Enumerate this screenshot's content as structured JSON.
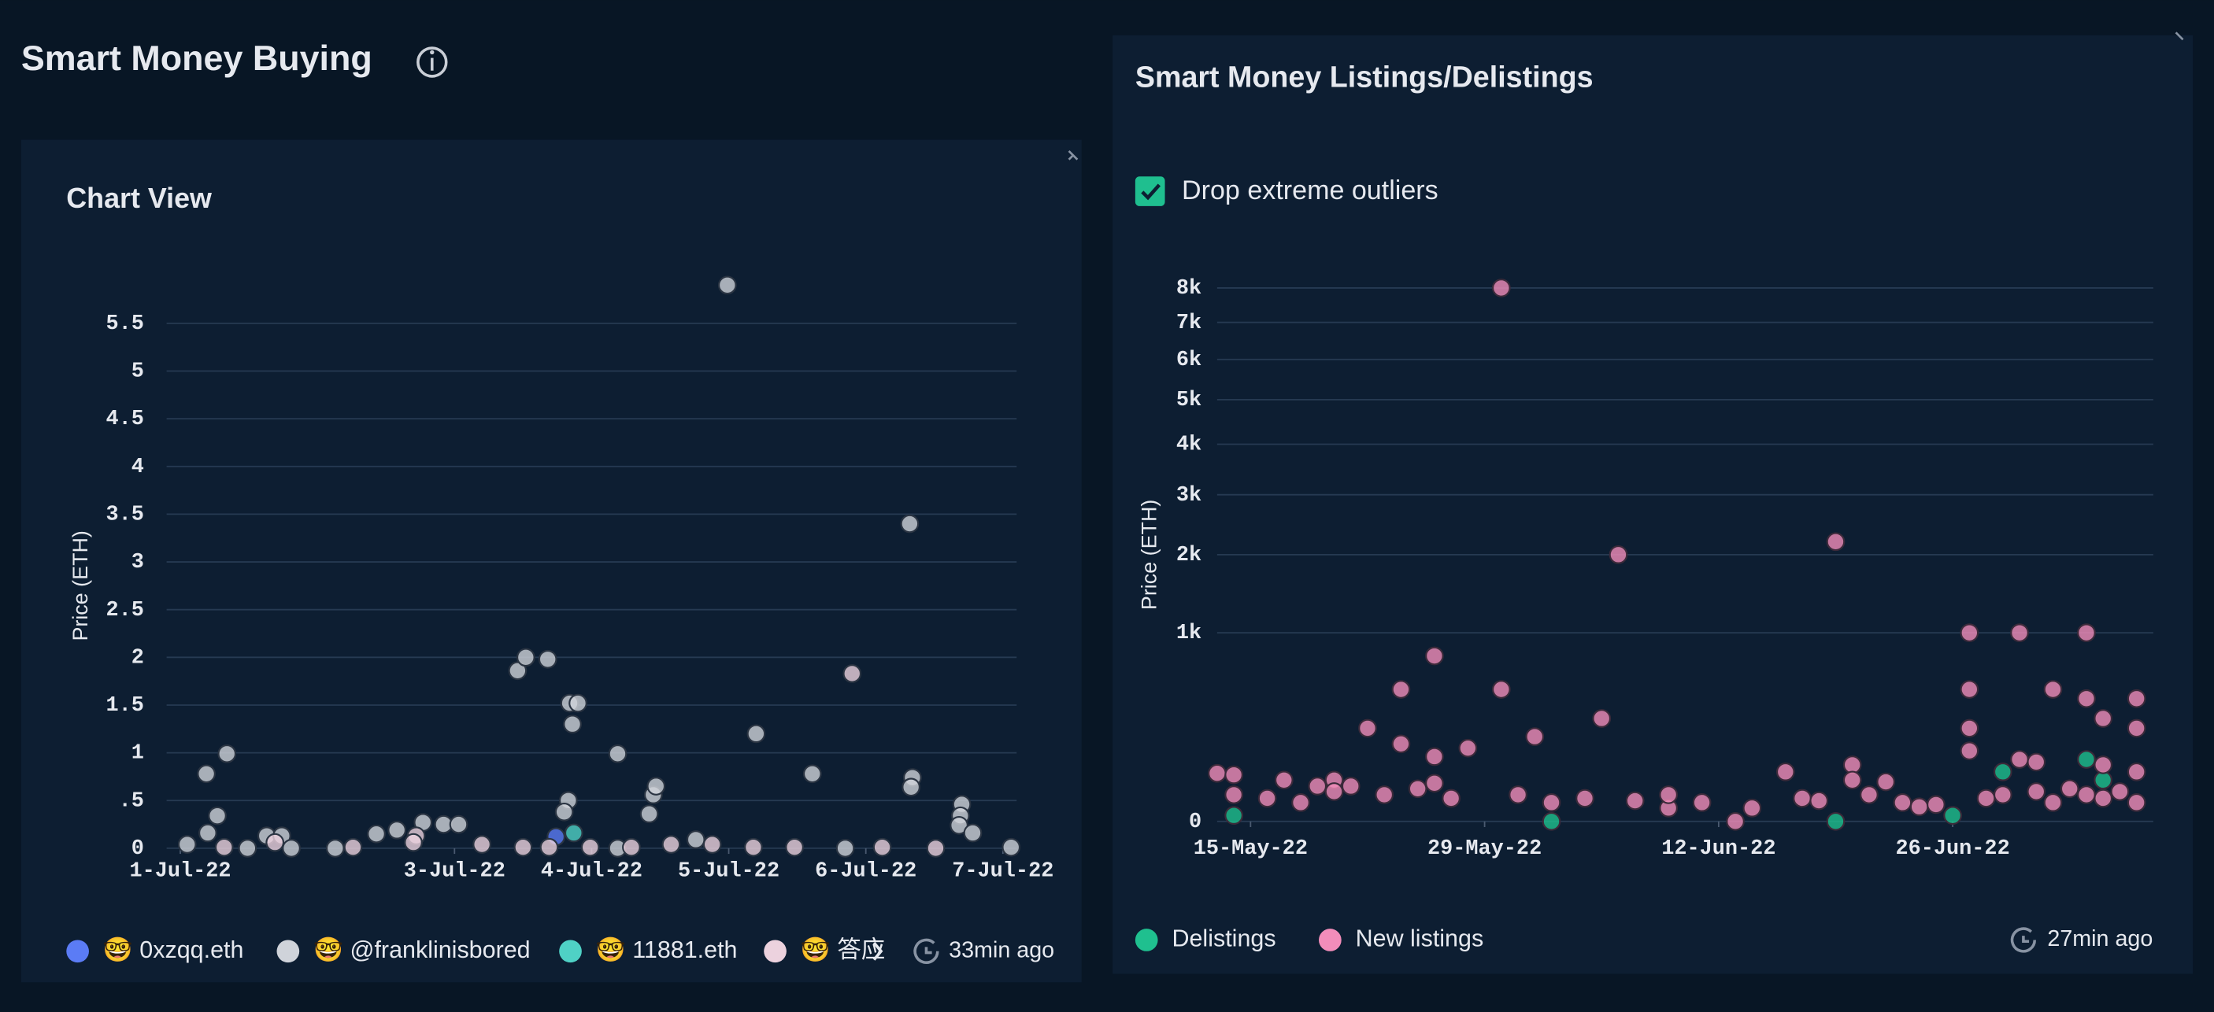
{
  "page": {
    "title": "Smart Money Buying"
  },
  "chart_data": [
    {
      "type": "scatter",
      "title": "Chart View",
      "ylabel": "Price (ETH)",
      "updated": "33min ago",
      "xlim": [
        0.9,
        7.1
      ],
      "ylim": [
        0,
        5.9
      ],
      "yscale": "linear",
      "grid": true,
      "xticks": [
        {
          "value": 1,
          "label": "1-Jul-22"
        },
        {
          "value": 3,
          "label": "3-Jul-22"
        },
        {
          "value": 4,
          "label": "4-Jul-22"
        },
        {
          "value": 5,
          "label": "5-Jul-22"
        },
        {
          "value": 6,
          "label": "6-Jul-22"
        },
        {
          "value": 7,
          "label": "7-Jul-22"
        }
      ],
      "yticks": [
        0,
        {
          "value": 0.5,
          "label": ".5"
        },
        1,
        1.5,
        2,
        2.5,
        3,
        3.5,
        4,
        4.5,
        5,
        5.5
      ],
      "series": [
        {
          "name": "🤓 0xzqq.eth",
          "color": "#5b7cf5",
          "x": [
            3.74
          ],
          "values": [
            0.12
          ]
        },
        {
          "name": "🤓 @franklinisbored",
          "color": "#cfd3da",
          "x": [
            1.05,
            1.19,
            1.34,
            1.27,
            1.2,
            1.49,
            1.63,
            1.74,
            1.81,
            2.13,
            2.43,
            2.58,
            2.77,
            2.92,
            3.03,
            3.46,
            3.52,
            3.68,
            3.84,
            3.9,
            3.86,
            3.83,
            3.8,
            4.19,
            4.45,
            4.47,
            4.42,
            4.99,
            5.2,
            5.61,
            6.32,
            6.34,
            6.33,
            6.7,
            6.69,
            6.68,
            6.78,
            7.06,
            5.85,
            4.76,
            4.19
          ],
          "values": [
            0.04,
            0.78,
            0.99,
            0.34,
            0.16,
            0,
            0.13,
            0.13,
            0,
            0,
            0.15,
            0.19,
            0.27,
            0.25,
            0.25,
            1.86,
            2,
            1.98,
            1.52,
            1.52,
            1.3,
            0.5,
            0.38,
            0.99,
            0.56,
            0.65,
            0.36,
            5.9,
            1.2,
            0.78,
            3.4,
            0.74,
            0.64,
            0.46,
            0.34,
            0.24,
            0.16,
            0.01,
            0,
            0.09,
            0
          ]
        },
        {
          "name": "🤓 11881.eth",
          "color": "#4fd1c5",
          "x": [
            3.87
          ],
          "values": [
            0.16
          ]
        },
        {
          "name": "🤓 答应",
          "color": "#ecd2de",
          "x": [
            5.9,
            2.26,
            2.72,
            3.2,
            3.5,
            3.69,
            3.99,
            4.29,
            4.58,
            4.88,
            5.18,
            5.48,
            6.12,
            6.51,
            1.32,
            1.69,
            2.7
          ],
          "values": [
            1.83,
            0.01,
            0.13,
            0.04,
            0.01,
            0.01,
            0.01,
            0.01,
            0.04,
            0.04,
            0.01,
            0.01,
            0.01,
            0,
            0.01,
            0.06,
            0.06
          ]
        }
      ]
    },
    {
      "type": "scatter",
      "title": "Smart Money Listings/Delistings",
      "option": "Drop extreme outliers",
      "ylabel": "Price (ETH)",
      "updated": "27min ago",
      "xlim": [
        "2022-05-13",
        "2022-07-08"
      ],
      "ylim": [
        0,
        8000
      ],
      "yscale": "sqrt",
      "grid": true,
      "xticks": [
        {
          "value": "2022-05-15",
          "label": "15-May-22"
        },
        {
          "value": "2022-05-29",
          "label": "29-May-22"
        },
        {
          "value": "2022-06-12",
          "label": "12-Jun-22"
        },
        {
          "value": "2022-06-26",
          "label": "26-Jun-22"
        }
      ],
      "yticks": [
        0,
        {
          "value": 1000,
          "label": "1k"
        },
        {
          "value": 2000,
          "label": "2k"
        },
        {
          "value": 3000,
          "label": "3k"
        },
        {
          "value": 4000,
          "label": "4k"
        },
        {
          "value": 5000,
          "label": "5k"
        },
        {
          "value": 6000,
          "label": "6k"
        },
        {
          "value": 7000,
          "label": "7k"
        },
        {
          "value": 8000,
          "label": "8k"
        }
      ],
      "series": [
        {
          "name": "Delistings",
          "color": "#1fc08f",
          "x": [
            "2022-06-29",
            "2022-07-04",
            "2022-07-05",
            "2022-06-19",
            "2022-06-02",
            "2022-05-14",
            "2022-06-26"
          ],
          "values": [
            69,
            108,
            48,
            0,
            0,
            1,
            1
          ]
        },
        {
          "name": "New listings",
          "color": "#f28dba",
          "x": [
            "2022-05-30",
            "2022-06-06",
            "2022-06-19",
            "2022-06-27",
            "2022-06-30",
            "2022-07-04",
            "2022-05-26",
            "2022-05-24",
            "2022-05-30",
            "2022-06-27",
            "2022-07-02",
            "2022-05-22",
            "2022-06-01",
            "2022-06-05",
            "2022-07-04",
            "2022-07-07",
            "2022-07-07",
            "2022-07-05",
            "2022-05-28",
            "2022-05-24",
            "2022-05-26",
            "2022-06-27",
            "2022-06-27",
            "2022-06-16",
            "2022-06-20",
            "2022-06-20",
            "2022-06-22",
            "2022-06-30",
            "2022-07-01",
            "2022-05-13",
            "2022-05-14",
            "2022-05-17",
            "2022-05-19",
            "2022-05-20",
            "2022-05-21",
            "2022-05-26",
            "2022-07-05",
            "2022-07-07",
            "2022-06-24",
            "2022-06-13",
            "2022-06-09",
            "2022-05-14",
            "2022-05-16",
            "2022-05-18",
            "2022-05-20",
            "2022-05-23",
            "2022-05-25",
            "2022-05-27",
            "2022-05-31",
            "2022-06-02",
            "2022-06-04",
            "2022-06-07",
            "2022-06-09",
            "2022-06-11",
            "2022-06-14",
            "2022-06-17",
            "2022-06-18",
            "2022-06-21",
            "2022-06-23",
            "2022-06-25",
            "2022-06-28",
            "2022-06-29",
            "2022-07-01",
            "2022-07-02",
            "2022-07-03",
            "2022-07-04",
            "2022-07-05",
            "2022-07-06",
            "2022-07-07"
          ],
          "values": [
            8000,
            2000,
            2200,
            1000,
            1000,
            1000,
            770,
            490,
            490,
            490,
            490,
            244,
            202,
            298,
            424,
            424,
            244,
            298,
            151,
            169,
            118,
            244,
            140,
            69,
            90,
            48,
            44,
            108,
            99,
            65,
            61,
            48,
            35,
            48,
            35,
            41,
            90,
            69,
            6,
            0,
            5,
            20,
            15,
            10,
            25,
            20,
            30,
            15,
            20,
            10,
            15,
            12,
            20,
            10,
            5,
            15,
            12,
            20,
            10,
            8,
            15,
            20,
            25,
            10,
            30,
            20,
            15,
            25,
            10
          ]
        }
      ]
    }
  ]
}
